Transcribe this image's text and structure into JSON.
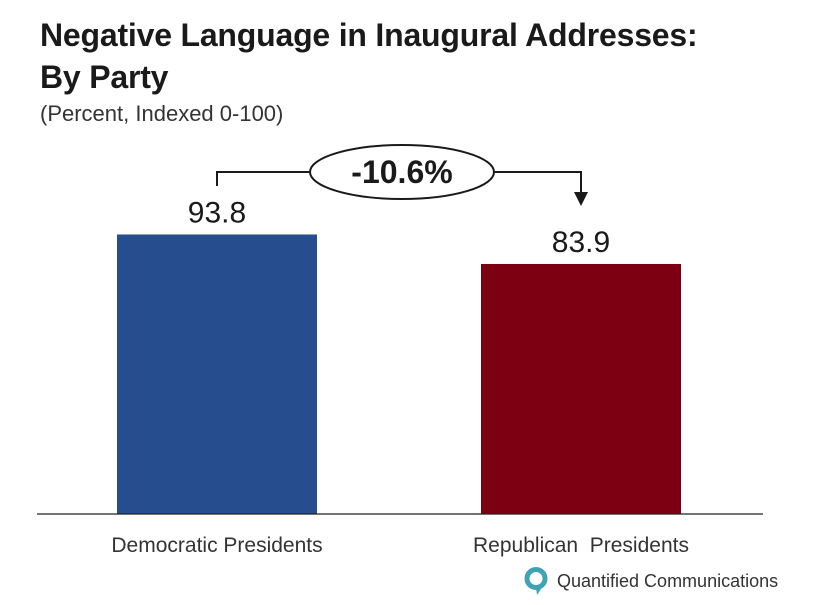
{
  "chart_data": {
    "type": "bar",
    "title_line1": "Negative Language in Inaugural Addresses:",
    "title_line2": "By Party",
    "subtitle": "(Percent, Indexed 0-100)",
    "categories": [
      "Democratic Presidents",
      "Republican  Presidents"
    ],
    "values": [
      93.8,
      83.9
    ],
    "value_labels": [
      "93.8",
      "83.9"
    ],
    "colors": [
      "#264e8f",
      "#7d0012"
    ],
    "ylim": [
      0,
      100
    ],
    "grid": false,
    "xlabel": "",
    "ylabel": "",
    "annotation": {
      "label": "-10.6%",
      "from_category": "Democratic Presidents",
      "to_category": "Republican  Presidents"
    }
  },
  "brand": {
    "name": "Quantified Communications",
    "logo_icon": "q-logo-icon",
    "logo_color": "#3ea3b5"
  }
}
